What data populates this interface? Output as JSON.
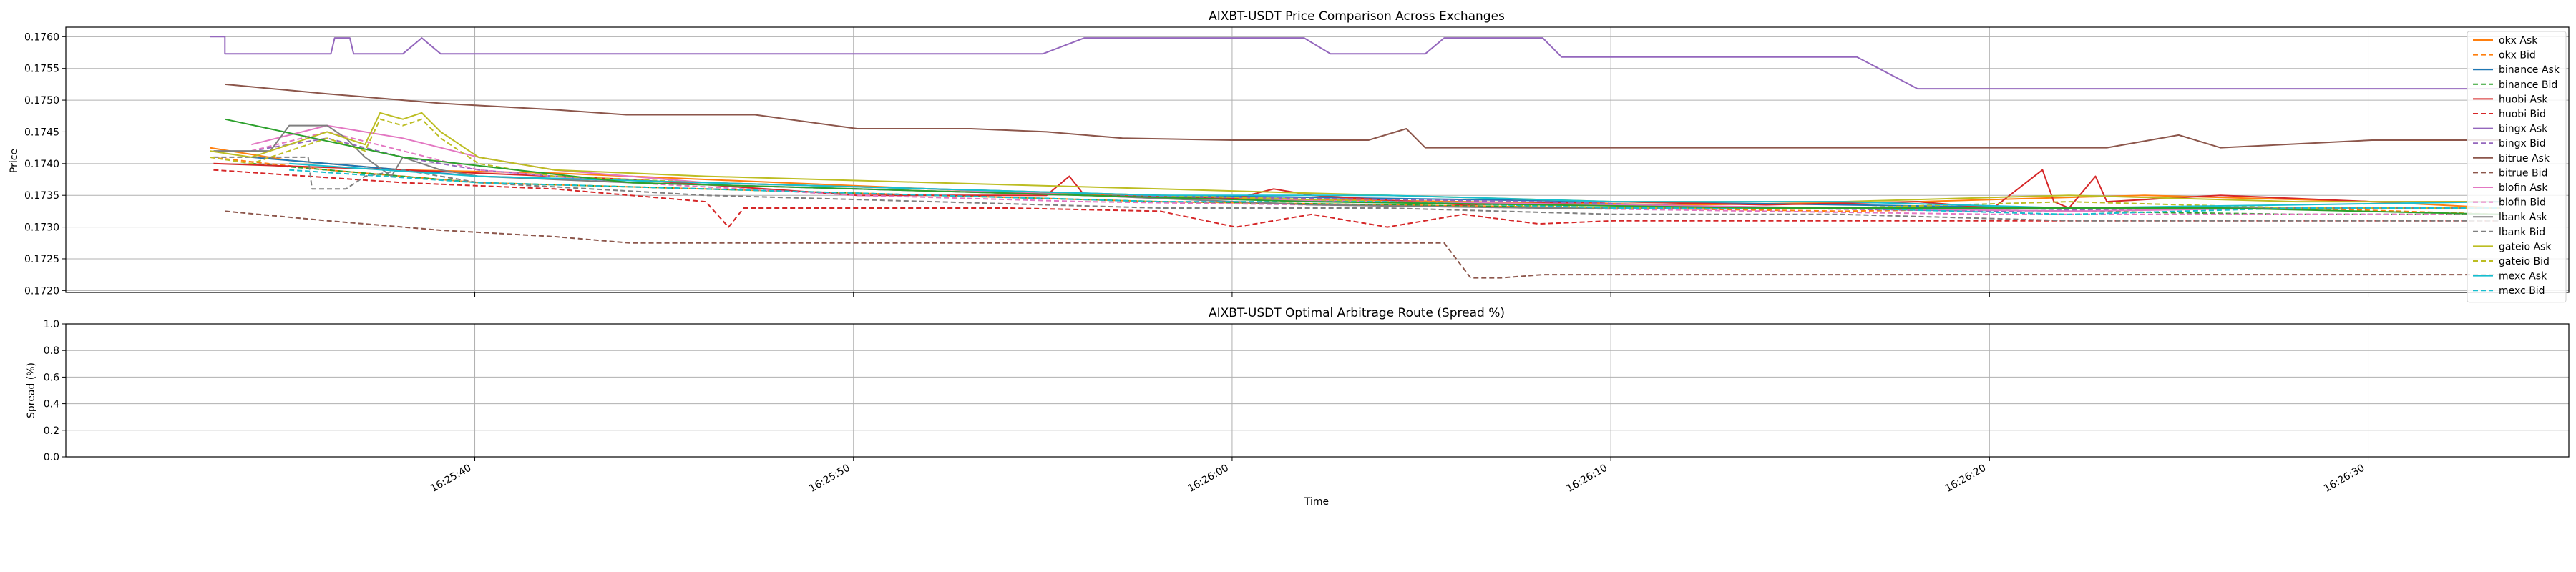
{
  "chart_data": [
    {
      "type": "line",
      "title": "AIXBT-USDT Price Comparison Across Exchanges",
      "xlabel": "",
      "ylabel": "Price",
      "ylim": [
        0.17197,
        0.17615
      ],
      "y_ticks": [
        0.172,
        0.1725,
        0.173,
        0.1735,
        0.174,
        0.1745,
        0.175,
        0.1755,
        0.176
      ],
      "y_tick_labels": [
        "0.1720",
        "0.1725",
        "0.1730",
        "0.1735",
        "0.1740",
        "0.1745",
        "0.1750",
        "0.1755",
        "0.1760"
      ],
      "x_unit": "seconds after 16:25:30",
      "xlim": [
        -0.9,
        65.2
      ],
      "x_ticks": [
        9.9,
        19.9,
        29.9,
        39.9,
        49.9,
        59.9
      ],
      "grid": true,
      "legend_position": "right",
      "series": [
        {
          "name": "okx Ask",
          "color": "#ff7f0e",
          "dash": "solid",
          "x": [
            2.9,
            5,
            8,
            12,
            18,
            24,
            30,
            36,
            42,
            48,
            54,
            60,
            63.4
          ],
          "y": [
            0.17425,
            0.17405,
            0.1739,
            0.17385,
            0.1737,
            0.17355,
            0.17345,
            0.1734,
            0.17335,
            0.1734,
            0.1735,
            0.1734,
            0.1733
          ]
        },
        {
          "name": "okx Bid",
          "color": "#ff7f0e",
          "dash": "dashed",
          "x": [
            2.9,
            6,
            10,
            16,
            22,
            28,
            34,
            40,
            46,
            52,
            58,
            63.4
          ],
          "y": [
            0.1741,
            0.1739,
            0.1737,
            0.1736,
            0.1735,
            0.1734,
            0.17335,
            0.1733,
            0.17325,
            0.1733,
            0.1733,
            0.1732
          ]
        },
        {
          "name": "binance Ask",
          "color": "#1f77b4",
          "dash": "solid",
          "x": [
            4,
            10,
            16,
            22,
            28,
            34,
            40,
            46,
            52,
            58,
            63.4
          ],
          "y": [
            0.1741,
            0.1738,
            0.1737,
            0.1736,
            0.1735,
            0.17345,
            0.1734,
            0.17335,
            0.1733,
            0.1733,
            0.1733
          ]
        },
        {
          "name": "binance Bid",
          "color": "#2ca02c",
          "dash": "dashed",
          "x": [
            4,
            10,
            16,
            22,
            28,
            34,
            40,
            46,
            52,
            58,
            63.4
          ],
          "y": [
            0.174,
            0.1737,
            0.1736,
            0.1735,
            0.1734,
            0.17335,
            0.1733,
            0.1733,
            0.17325,
            0.1732,
            0.1732
          ]
        },
        {
          "name": "huobi Ask",
          "color": "#d62728",
          "dash": "solid",
          "x": [
            3,
            8,
            14,
            20,
            25,
            25.6,
            26,
            30,
            31,
            32,
            36,
            40,
            44,
            48,
            50,
            51.3,
            51.6,
            52,
            52.7,
            53,
            56,
            60,
            63.4
          ],
          "y": [
            0.174,
            0.1739,
            0.17375,
            0.1735,
            0.1735,
            0.1738,
            0.1735,
            0.17345,
            0.1736,
            0.1735,
            0.17335,
            0.1734,
            0.17335,
            0.1734,
            0.1733,
            0.1739,
            0.1734,
            0.1733,
            0.1738,
            0.1734,
            0.1735,
            0.1734,
            0.1734
          ]
        },
        {
          "name": "huobi Bid",
          "color": "#d62728",
          "dash": "dashed",
          "x": [
            3,
            8,
            12,
            16,
            16.6,
            17,
            20,
            24,
            28,
            30,
            32,
            34,
            36,
            38,
            40,
            44,
            48,
            52,
            56,
            60,
            63.4
          ],
          "y": [
            0.1739,
            0.1737,
            0.1736,
            0.1734,
            0.173,
            0.1733,
            0.1733,
            0.1733,
            0.17325,
            0.173,
            0.1732,
            0.173,
            0.1732,
            0.17305,
            0.1731,
            0.1731,
            0.1731,
            0.1731,
            0.1731,
            0.1731,
            0.1731
          ]
        },
        {
          "name": "bingx Ask",
          "color": "#9467bd",
          "dash": "solid",
          "x": [
            2.9,
            3.3,
            3.3,
            6.1,
            6.2,
            6.3,
            6.6,
            6.7,
            7.0,
            8,
            8.5,
            9,
            10,
            18,
            24.9,
            26,
            30,
            31.8,
            32.5,
            35,
            35.5,
            37,
            38.1,
            38.6,
            45,
            46.4,
            48,
            63.4
          ],
          "y": [
            0.176,
            0.176,
            0.17573,
            0.17573,
            0.17598,
            0.17598,
            0.17598,
            0.17573,
            0.17573,
            0.17573,
            0.17598,
            0.17573,
            0.17573,
            0.17573,
            0.17573,
            0.17598,
            0.17598,
            0.17598,
            0.17573,
            0.17573,
            0.17598,
            0.17598,
            0.17598,
            0.17568,
            0.17568,
            0.17568,
            0.17518,
            0.17518
          ]
        },
        {
          "name": "bingx Bid",
          "color": "#9467bd",
          "dash": "dashed",
          "x": [
            4,
            6,
            8,
            10,
            14,
            20,
            26,
            32,
            38,
            44,
            50,
            56,
            63.4
          ],
          "y": [
            0.1742,
            0.1744,
            0.1741,
            0.1739,
            0.1737,
            0.1736,
            0.1735,
            0.17345,
            0.1734,
            0.1733,
            0.17325,
            0.1733,
            0.1733
          ]
        },
        {
          "name": "bitrue Ask",
          "color": "#8c564b",
          "dash": "solid",
          "x": [
            3.3,
            6,
            9,
            12,
            13.9,
            15,
            16.3,
            17.3,
            20,
            23,
            25,
            27,
            29.9,
            32.4,
            33.5,
            34.5,
            35,
            38.9,
            39,
            44,
            50,
            53,
            54.9,
            56,
            60,
            63.4
          ],
          "y": [
            0.17525,
            0.1751,
            0.17495,
            0.17485,
            0.17477,
            0.17477,
            0.17477,
            0.17477,
            0.17455,
            0.17455,
            0.1745,
            0.1744,
            0.17437,
            0.17437,
            0.17437,
            0.17455,
            0.17425,
            0.17425,
            0.17425,
            0.17425,
            0.17425,
            0.17425,
            0.17445,
            0.17425,
            0.17437,
            0.17437
          ]
        },
        {
          "name": "bitrue Bid",
          "color": "#8c564b",
          "dash": "dashed",
          "x": [
            3.3,
            6,
            9,
            12,
            14,
            16,
            20,
            28,
            34,
            35.5,
            36.2,
            37,
            38.1,
            40,
            48,
            56,
            63.4
          ],
          "y": [
            0.17325,
            0.1731,
            0.17295,
            0.17285,
            0.17275,
            0.17275,
            0.17275,
            0.17275,
            0.17275,
            0.17275,
            0.1722,
            0.1722,
            0.17225,
            0.17225,
            0.17225,
            0.17225,
            0.17225
          ]
        },
        {
          "name": "blofin Ask",
          "color": "#e377c2",
          "dash": "solid",
          "x": [
            4,
            6,
            8,
            10,
            12,
            16,
            22,
            28,
            34,
            40,
            46,
            52,
            58,
            63.4
          ],
          "y": [
            0.1743,
            0.1746,
            0.1744,
            0.1741,
            0.1739,
            0.1737,
            0.1736,
            0.17345,
            0.1734,
            0.17335,
            0.1733,
            0.17325,
            0.1733,
            0.1733
          ]
        },
        {
          "name": "blofin Bid",
          "color": "#e377c2",
          "dash": "dashed",
          "x": [
            4,
            6,
            8,
            10,
            14,
            20,
            26,
            32,
            38,
            44,
            50,
            56,
            63.4
          ],
          "y": [
            0.1742,
            0.1745,
            0.1742,
            0.1739,
            0.1737,
            0.1735,
            0.1734,
            0.17335,
            0.1733,
            0.17325,
            0.1732,
            0.1732,
            0.1732
          ]
        },
        {
          "name": "lbank Ask",
          "color": "#7f7f7f",
          "dash": "solid",
          "x": [
            3,
            4.5,
            5,
            6,
            6.5,
            7,
            7.7,
            8,
            9,
            10,
            14,
            20,
            26,
            32,
            38,
            44,
            50,
            56,
            63.4
          ],
          "y": [
            0.1742,
            0.1742,
            0.1746,
            0.1746,
            0.1744,
            0.1741,
            0.1738,
            0.1741,
            0.1739,
            0.1738,
            0.1737,
            0.1736,
            0.1735,
            0.17335,
            0.1733,
            0.1733,
            0.1733,
            0.1733,
            0.1733
          ]
        },
        {
          "name": "lbank Bid",
          "color": "#7f7f7f",
          "dash": "dashed",
          "x": [
            3,
            5.5,
            5.6,
            6.5,
            7,
            8,
            10,
            16,
            22,
            28,
            34,
            40,
            46,
            52,
            58,
            63.4
          ],
          "y": [
            0.1741,
            0.1741,
            0.1736,
            0.1736,
            0.1738,
            0.1739,
            0.1737,
            0.1735,
            0.1734,
            0.1733,
            0.1733,
            0.1732,
            0.1732,
            0.1731,
            0.1731,
            0.1731
          ]
        },
        {
          "name": "gateio Ask",
          "color": "#bcbd22",
          "dash": "solid",
          "x": [
            2.9,
            4,
            5,
            6,
            7,
            7.4,
            8,
            8.5,
            9,
            10,
            12,
            16,
            22,
            28,
            34,
            40,
            46,
            52,
            58,
            63.4
          ],
          "y": [
            0.1742,
            0.1741,
            0.1743,
            0.1745,
            0.1743,
            0.1748,
            0.1747,
            0.1748,
            0.1745,
            0.1741,
            0.1739,
            0.1738,
            0.1737,
            0.1736,
            0.1735,
            0.1734,
            0.1734,
            0.1735,
            0.1734,
            0.1734
          ]
        },
        {
          "name": "gateio Bid",
          "color": "#bcbd22",
          "dash": "dashed",
          "x": [
            2.9,
            4,
            5,
            6,
            7,
            7.4,
            8,
            8.5,
            9,
            10,
            12,
            16,
            22,
            28,
            34,
            40,
            46,
            52,
            58,
            63.4
          ],
          "y": [
            0.1741,
            0.174,
            0.1742,
            0.1744,
            0.1742,
            0.1747,
            0.1746,
            0.1747,
            0.1744,
            0.174,
            0.1738,
            0.1737,
            0.1736,
            0.1735,
            0.1734,
            0.1733,
            0.1733,
            0.1734,
            0.1733,
            0.1733
          ]
        },
        {
          "name": "mexc Ask",
          "color": "#17becf",
          "dash": "solid",
          "x": [
            5,
            10,
            16,
            22,
            28,
            34,
            40,
            46,
            52,
            58,
            63.4
          ],
          "y": [
            0.174,
            0.1738,
            0.1737,
            0.1736,
            0.1735,
            0.1735,
            0.1734,
            0.1734,
            0.1733,
            0.17335,
            0.1734
          ]
        },
        {
          "name": "mexc Bid",
          "color": "#17becf",
          "dash": "dashed",
          "x": [
            5,
            10,
            16,
            22,
            28,
            34,
            40,
            46,
            52,
            58,
            63.4
          ],
          "y": [
            0.1739,
            0.1737,
            0.1736,
            0.1735,
            0.1734,
            0.1734,
            0.1733,
            0.1733,
            0.1732,
            0.1733,
            0.1733
          ]
        },
        {
          "name": "",
          "color": "#2ca02c",
          "dash": "solid",
          "x": [
            3.3,
            8,
            14,
            20,
            26,
            32,
            38,
            44,
            50,
            56,
            63.4
          ],
          "y": [
            0.1747,
            0.1741,
            0.1737,
            0.1736,
            0.1735,
            0.1734,
            0.17335,
            0.1733,
            0.1733,
            0.1733,
            0.1732
          ]
        }
      ]
    },
    {
      "type": "line",
      "title": "AIXBT-USDT Optimal Arbitrage Route (Spread %)",
      "xlabel": "Time",
      "ylabel": "Spread (%)",
      "ylim": [
        0.0,
        1.0
      ],
      "y_ticks": [
        0.0,
        0.2,
        0.4,
        0.6,
        0.8,
        1.0
      ],
      "y_tick_labels": [
        "0.0",
        "0.2",
        "0.4",
        "0.6",
        "0.8",
        "1.0"
      ],
      "x_unit": "seconds after 16:25:30",
      "xlim": [
        -0.9,
        65.2
      ],
      "x_ticks": [
        9.9,
        19.9,
        29.9,
        39.9,
        49.9,
        59.9
      ],
      "x_tick_labels": [
        "16:25:40",
        "16:25:50",
        "16:26:00",
        "16:26:10",
        "16:26:20",
        "16:26:30"
      ],
      "grid": true,
      "series": []
    }
  ]
}
